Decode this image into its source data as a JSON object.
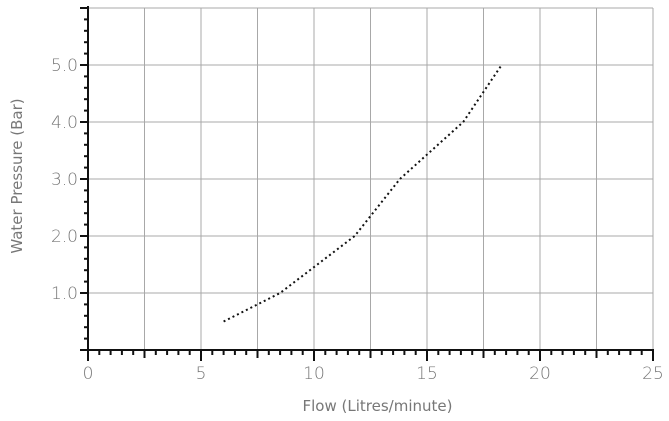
{
  "chart_data": {
    "type": "line",
    "title": "",
    "xlabel": "Flow (Litres/minute)",
    "ylabel": "Water Pressure (Bar)",
    "xlim": [
      0,
      25
    ],
    "ylim": [
      0,
      6
    ],
    "xticks": [
      0,
      5,
      10,
      15,
      20,
      25
    ],
    "xtick_labels": [
      "0",
      "5",
      "10",
      "15",
      "20",
      "25"
    ],
    "yticks": [
      1,
      2,
      3,
      4,
      5
    ],
    "ytick_labels": [
      "1.0",
      "2.0",
      "3.0",
      "4.0",
      "5.0"
    ],
    "grid": true,
    "series": [
      {
        "line_style": "dotted",
        "color": "#111111",
        "x": [
          6.0,
          8.5,
          11.8,
          13.8,
          16.6,
          18.3
        ],
        "y": [
          0.5,
          1.0,
          2.0,
          3.0,
          4.0,
          5.0
        ]
      }
    ]
  }
}
